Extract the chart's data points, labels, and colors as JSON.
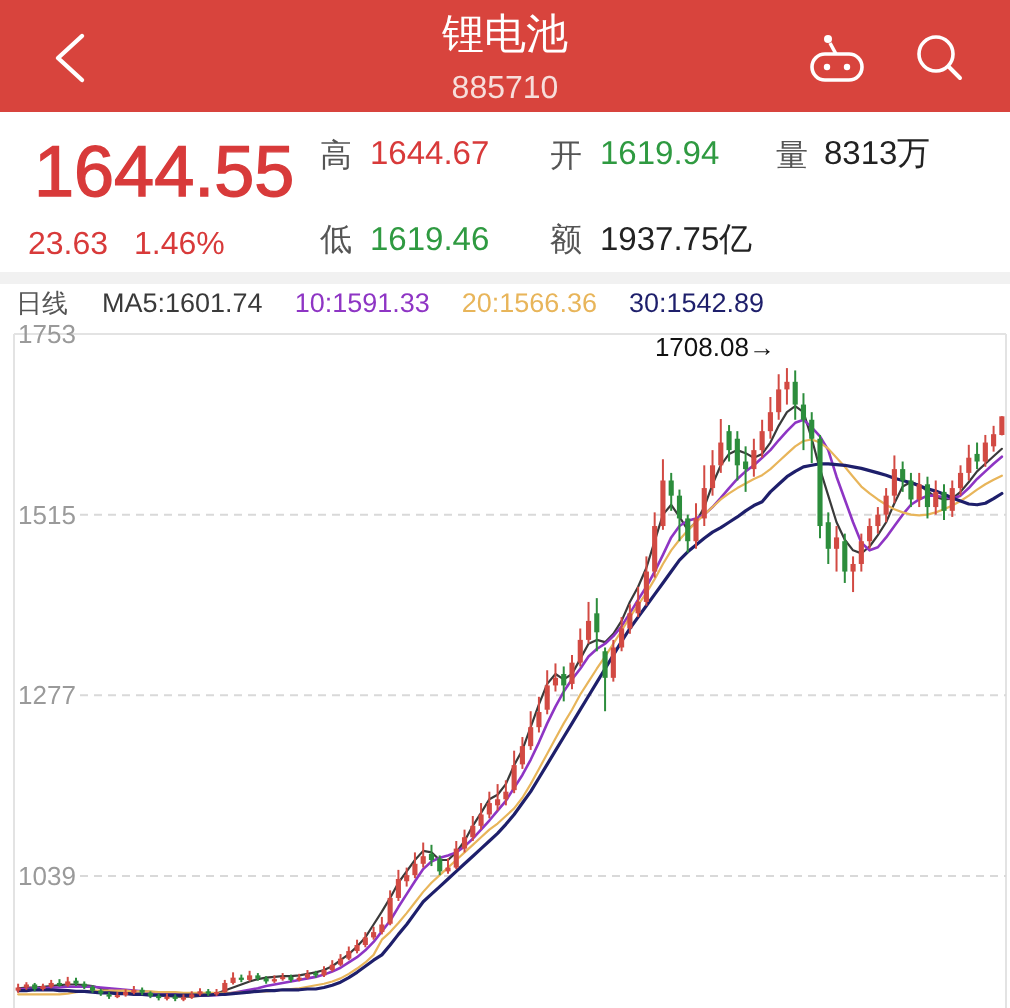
{
  "chart_data": {
    "type": "candlestick",
    "title": "锂电池",
    "subtitle": "885710",
    "annotations": [
      "1644.55",
      "23.63",
      "1.46%",
      "高",
      "1644.67",
      "开",
      "1619.94",
      "量",
      "8313万",
      "低",
      "1619.46",
      "额",
      "1937.75亿",
      "1708.08→"
    ],
    "legend_title": "日线",
    "legend": "top",
    "grid": "y",
    "ylim": [
      865,
      1753
    ],
    "yticks": [
      1753,
      1515,
      1277,
      1039
    ],
    "categories": [
      null,
      null,
      null,
      null,
      null,
      null,
      null,
      null,
      null,
      null,
      null,
      null,
      null,
      null,
      null,
      null,
      null,
      null,
      null,
      null,
      null,
      null,
      null,
      null,
      null,
      null,
      null,
      null,
      null,
      null,
      null,
      null,
      null,
      null,
      null,
      null,
      null,
      null,
      null,
      null,
      null,
      null,
      null,
      null,
      null,
      null,
      null,
      null,
      null,
      null,
      null,
      null,
      null,
      null,
      null,
      null,
      null,
      null,
      null,
      null,
      null,
      null,
      null,
      null,
      null,
      null,
      null,
      null,
      null,
      null,
      null,
      null,
      null,
      null,
      null,
      null,
      null,
      null,
      null,
      null,
      null,
      null,
      null,
      null,
      null,
      null,
      null,
      null,
      null,
      null,
      null,
      null,
      null,
      null,
      null,
      null,
      null,
      null,
      null,
      null,
      null,
      null,
      null,
      null,
      null,
      null,
      null,
      null,
      null,
      null,
      null,
      null,
      null,
      null,
      null,
      null,
      null,
      null,
      null,
      null
    ],
    "ohlc": [
      [
        888,
        897,
        885,
        892
      ],
      [
        892,
        899,
        889,
        896
      ],
      [
        896,
        898,
        887,
        890
      ],
      [
        890,
        897,
        888,
        894
      ],
      [
        893,
        902,
        891,
        898
      ],
      [
        898,
        903,
        893,
        895
      ],
      [
        895,
        906,
        893,
        900
      ],
      [
        901,
        905,
        894,
        897
      ],
      [
        897,
        900,
        890,
        893
      ],
      [
        893,
        895,
        885,
        888
      ],
      [
        888,
        890,
        881,
        884
      ],
      [
        883,
        886,
        877,
        880
      ],
      [
        880,
        886,
        878,
        882
      ],
      [
        882,
        890,
        880,
        886
      ],
      [
        885,
        894,
        883,
        889
      ],
      [
        889,
        892,
        882,
        885
      ],
      [
        885,
        887,
        878,
        881
      ],
      [
        881,
        884,
        875,
        878
      ],
      [
        877,
        884,
        875,
        880
      ],
      [
        880,
        883,
        874,
        877
      ],
      [
        876,
        883,
        874,
        879
      ],
      [
        879,
        887,
        877,
        883
      ],
      [
        883,
        891,
        881,
        887
      ],
      [
        887,
        890,
        881,
        884
      ],
      [
        883,
        890,
        881,
        886
      ],
      [
        886,
        902,
        885,
        898
      ],
      [
        898,
        912,
        896,
        905
      ],
      [
        905,
        909,
        899,
        902
      ],
      [
        902,
        914,
        900,
        908
      ],
      [
        908,
        911,
        901,
        904
      ],
      [
        904,
        907,
        897,
        900
      ],
      [
        900,
        908,
        898,
        903
      ],
      [
        903,
        911,
        901,
        906
      ],
      [
        906,
        909,
        899,
        902
      ],
      [
        902,
        910,
        900,
        905
      ],
      [
        905,
        915,
        903,
        910
      ],
      [
        911,
        914,
        905,
        908
      ],
      [
        908,
        920,
        906,
        915
      ],
      [
        915,
        928,
        913,
        922
      ],
      [
        922,
        936,
        920,
        930
      ],
      [
        930,
        946,
        928,
        940
      ],
      [
        940,
        955,
        937,
        948
      ],
      [
        948,
        965,
        945,
        958
      ],
      [
        958,
        972,
        955,
        965
      ],
      [
        965,
        985,
        962,
        975
      ],
      [
        976,
        1020,
        974,
        1010
      ],
      [
        1010,
        1047,
        1006,
        1035
      ],
      [
        1032,
        1050,
        1025,
        1040
      ],
      [
        1040,
        1070,
        1036,
        1055
      ],
      [
        1055,
        1083,
        1050,
        1065
      ],
      [
        1068,
        1080,
        1052,
        1060
      ],
      [
        1062,
        1066,
        1040,
        1045
      ],
      [
        1045,
        1062,
        1042,
        1050
      ],
      [
        1050,
        1085,
        1048,
        1075
      ],
      [
        1075,
        1100,
        1070,
        1090
      ],
      [
        1090,
        1118,
        1085,
        1105
      ],
      [
        1105,
        1135,
        1100,
        1120
      ],
      [
        1120,
        1150,
        1115,
        1135
      ],
      [
        1132,
        1160,
        1125,
        1140
      ],
      [
        1140,
        1165,
        1132,
        1150
      ],
      [
        1152,
        1204,
        1148,
        1185
      ],
      [
        1186,
        1222,
        1180,
        1210
      ],
      [
        1210,
        1256,
        1205,
        1235
      ],
      [
        1235,
        1275,
        1228,
        1255
      ],
      [
        1258,
        1310,
        1252,
        1290
      ],
      [
        1290,
        1319,
        1282,
        1300
      ],
      [
        1305,
        1315,
        1269,
        1290
      ],
      [
        1292,
        1330,
        1285,
        1320
      ],
      [
        1320,
        1365,
        1315,
        1350
      ],
      [
        1350,
        1400,
        1345,
        1375
      ],
      [
        1385,
        1405,
        1335,
        1360
      ],
      [
        1335,
        1340,
        1256,
        1300
      ],
      [
        1300,
        1350,
        1295,
        1340
      ],
      [
        1340,
        1380,
        1335,
        1365
      ],
      [
        1365,
        1397,
        1358,
        1385
      ],
      [
        1385,
        1420,
        1380,
        1400
      ],
      [
        1400,
        1460,
        1395,
        1440
      ],
      [
        1440,
        1518,
        1432,
        1500
      ],
      [
        1500,
        1588,
        1495,
        1560
      ],
      [
        1560,
        1570,
        1520,
        1540
      ],
      [
        1540,
        1548,
        1480,
        1510
      ],
      [
        1510,
        1515,
        1465,
        1480
      ],
      [
        1480,
        1530,
        1470,
        1510
      ],
      [
        1510,
        1580,
        1500,
        1550
      ],
      [
        1550,
        1600,
        1540,
        1580
      ],
      [
        1580,
        1641,
        1570,
        1610
      ],
      [
        1625,
        1633,
        1585,
        1600
      ],
      [
        1615,
        1625,
        1560,
        1580
      ],
      [
        1585,
        1605,
        1545,
        1575
      ],
      [
        1575,
        1615,
        1565,
        1600
      ],
      [
        1600,
        1640,
        1590,
        1625
      ],
      [
        1625,
        1670,
        1615,
        1650
      ],
      [
        1650,
        1700,
        1640,
        1680
      ],
      [
        1680,
        1708.08,
        1660,
        1690
      ],
      [
        1690,
        1705,
        1640,
        1660
      ],
      [
        1660,
        1675,
        1600,
        1640
      ],
      [
        1640,
        1650,
        1583,
        1615
      ],
      [
        1615,
        1620,
        1484,
        1500
      ],
      [
        1505,
        1518,
        1450,
        1470
      ],
      [
        1470,
        1500,
        1440,
        1485
      ],
      [
        1480,
        1490,
        1425,
        1440
      ],
      [
        1440,
        1460,
        1413,
        1450
      ],
      [
        1450,
        1490,
        1440,
        1480
      ],
      [
        1480,
        1510,
        1470,
        1500
      ],
      [
        1500,
        1525,
        1490,
        1515
      ],
      [
        1515,
        1550,
        1505,
        1540
      ],
      [
        1540,
        1593,
        1530,
        1575
      ],
      [
        1575,
        1585,
        1545,
        1560
      ],
      [
        1560,
        1570,
        1525,
        1535
      ],
      [
        1535,
        1570,
        1525,
        1555
      ],
      [
        1555,
        1565,
        1510,
        1525
      ],
      [
        1525,
        1560,
        1515,
        1545
      ],
      [
        1545,
        1555,
        1508,
        1520
      ],
      [
        1520,
        1560,
        1512,
        1550
      ],
      [
        1550,
        1580,
        1540,
        1570
      ],
      [
        1570,
        1607,
        1560,
        1590
      ],
      [
        1595,
        1610,
        1575,
        1585
      ],
      [
        1585,
        1620,
        1578,
        1610
      ],
      [
        1605,
        1632,
        1598,
        1621
      ],
      [
        1619.94,
        1644.67,
        1619.46,
        1644.55
      ]
    ],
    "colors": [
      "#d24a43",
      "#d24a43",
      "#2c8d3c",
      "#d24a43",
      "#d24a43",
      "#2c8d3c",
      "#d24a43",
      "#2c8d3c",
      "#2c8d3c",
      "#2c8d3c",
      "#2c8d3c",
      "#2c8d3c",
      "#d24a43",
      "#d24a43",
      "#d24a43",
      "#2c8d3c",
      "#2c8d3c",
      "#2c8d3c",
      "#d24a43",
      "#2c8d3c",
      "#d24a43",
      "#d24a43",
      "#d24a43",
      "#2c8d3c",
      "#d24a43",
      "#d24a43",
      "#d24a43",
      "#2c8d3c",
      "#d24a43",
      "#2c8d3c",
      "#2c8d3c",
      "#d24a43",
      "#d24a43",
      "#2c8d3c",
      "#d24a43",
      "#d24a43",
      "#2c8d3c",
      "#d24a43",
      "#d24a43",
      "#d24a43",
      "#d24a43",
      "#d24a43",
      "#d24a43",
      "#d24a43",
      "#d24a43",
      "#d24a43",
      "#d24a43",
      "#d24a43",
      "#d24a43",
      "#d24a43",
      "#2c8d3c",
      "#2c8d3c",
      "#d24a43",
      "#d24a43",
      "#d24a43",
      "#d24a43",
      "#d24a43",
      "#d24a43",
      "#d24a43",
      "#d24a43",
      "#d24a43",
      "#d24a43",
      "#d24a43",
      "#d24a43",
      "#d24a43",
      "#d24a43",
      "#2c8d3c",
      "#d24a43",
      "#d24a43",
      "#d24a43",
      "#2c8d3c",
      "#2c8d3c",
      "#d24a43",
      "#d24a43",
      "#d24a43",
      "#d24a43",
      "#d24a43",
      "#d24a43",
      "#d24a43",
      "#2c8d3c",
      "#2c8d3c",
      "#2c8d3c",
      "#d24a43",
      "#d24a43",
      "#d24a43",
      "#d24a43",
      "#2c8d3c",
      "#2c8d3c",
      "#2c8d3c",
      "#d24a43",
      "#d24a43",
      "#d24a43",
      "#d24a43",
      "#d24a43",
      "#2c8d3c",
      "#2c8d3c",
      "#2c8d3c",
      "#2c8d3c",
      "#2c8d3c",
      "#d24a43",
      "#2c8d3c",
      "#d24a43",
      "#d24a43",
      "#d24a43",
      "#d24a43",
      "#d24a43",
      "#d24a43",
      "#2c8d3c",
      "#2c8d3c",
      "#d24a43",
      "#2c8d3c",
      "#d24a43",
      "#2c8d3c",
      "#d24a43",
      "#d24a43",
      "#d24a43",
      "#2c8d3c",
      "#d24a43",
      "#d24a43",
      "#d24a43"
    ],
    "series": [
      {
        "name": "MA5:1601.74",
        "type": "line",
        "color": "#3a3a3a",
        "values": [
          891,
          892,
          892,
          893,
          894,
          895,
          896,
          896,
          895,
          894,
          891,
          888,
          886,
          885,
          884,
          884,
          883,
          882,
          881,
          880,
          880,
          880,
          881,
          882,
          884,
          888,
          892,
          896,
          900,
          903,
          905,
          906,
          907,
          907,
          908,
          910,
          912,
          915,
          920,
          928,
          936,
          946,
          958,
          975,
          992,
          1010,
          1030,
          1045,
          1060,
          1072,
          1070,
          1060,
          1060,
          1070,
          1085,
          1105,
          1122,
          1140,
          1146,
          1160,
          1185,
          1205,
          1235,
          1265,
          1292,
          1305,
          1298,
          1305,
          1325,
          1345,
          1350,
          1347,
          1358,
          1375,
          1400,
          1420,
          1445,
          1480,
          1515,
          1528,
          1512,
          1495,
          1505,
          1525,
          1555,
          1580,
          1595,
          1600,
          1596,
          1590,
          1595,
          1610,
          1632,
          1650,
          1658,
          1650,
          1615,
          1575,
          1540,
          1505,
          1482,
          1468,
          1464,
          1473,
          1488,
          1505,
          1530,
          1552,
          1558,
          1554,
          1546,
          1538,
          1535,
          1536,
          1545,
          1558,
          1572,
          1582,
          1592,
          1601.74
        ]
      },
      {
        "name": "10:1591.33",
        "type": "line",
        "color": "#8e35c4",
        "values": [
          890,
          890,
          891,
          891,
          892,
          892,
          893,
          893,
          893,
          893,
          892,
          891,
          890,
          889,
          888,
          887,
          886,
          885,
          884,
          883,
          882,
          882,
          882,
          882,
          882,
          883,
          885,
          887,
          889,
          891,
          894,
          896,
          898,
          900,
          902,
          904,
          906,
          909,
          913,
          918,
          925,
          932,
          941,
          952,
          966,
          980,
          998,
          1015,
          1032,
          1048,
          1058,
          1063,
          1066,
          1070,
          1078,
          1088,
          1100,
          1112,
          1125,
          1138,
          1155,
          1172,
          1192,
          1215,
          1240,
          1262,
          1282,
          1298,
          1312,
          1328,
          1338,
          1345,
          1355,
          1368,
          1385,
          1403,
          1420,
          1440,
          1462,
          1485,
          1500,
          1507,
          1510,
          1515,
          1525,
          1537,
          1550,
          1562,
          1572,
          1580,
          1590,
          1600,
          1613,
          1625,
          1636,
          1640,
          1630,
          1618,
          1600,
          1565,
          1535,
          1505,
          1478,
          1468,
          1472,
          1485,
          1500,
          1515,
          1528,
          1535,
          1540,
          1540,
          1538,
          1536,
          1540,
          1550,
          1562,
          1572,
          1582,
          1591.33
        ]
      },
      {
        "name": "20:1566.36",
        "type": "line",
        "color": "#e8b55a",
        "values": [
          883,
          883,
          883,
          883,
          883,
          883,
          884,
          886,
          887,
          888,
          888,
          888,
          888,
          888,
          887,
          887,
          887,
          886,
          886,
          886,
          885,
          885,
          885,
          885,
          885,
          885,
          885,
          886,
          886,
          887,
          887,
          888,
          889,
          890,
          891,
          893,
          895,
          897,
          900,
          904,
          910,
          917,
          925,
          935,
          955,
          965,
          977,
          990,
          1004,
          1018,
          1030,
          1040,
          1050,
          1060,
          1070,
          1080,
          1090,
          1100,
          1108,
          1118,
          1128,
          1142,
          1160,
          1180,
          1200,
          1220,
          1240,
          1258,
          1278,
          1295,
          1312,
          1328,
          1345,
          1362,
          1380,
          1396,
          1412,
          1430,
          1450,
          1468,
          1482,
          1494,
          1505,
          1515,
          1525,
          1535,
          1543,
          1550,
          1556,
          1562,
          1567,
          1575,
          1585,
          1595,
          1605,
          1612,
          1614,
          1610,
          1602,
          1590,
          1578,
          1565,
          1552,
          1543,
          1535,
          1528,
          1522,
          1518,
          1515,
          1514,
          1515,
          1518,
          1522,
          1527,
          1533,
          1540,
          1548,
          1555,
          1561,
          1566.36
        ]
      },
      {
        "name": "30:1542.89",
        "type": "line",
        "color": "#1e1f6b",
        "values": [
          888,
          888,
          889,
          889,
          889,
          888,
          888,
          887,
          887,
          886,
          885,
          885,
          884,
          884,
          883,
          883,
          882,
          882,
          882,
          882,
          882,
          882,
          882,
          882,
          883,
          883,
          884,
          885,
          886,
          887,
          888,
          888,
          889,
          889,
          889,
          890,
          890,
          892,
          895,
          899,
          905,
          912,
          920,
          928,
          935,
          948,
          962,
          975,
          990,
          1005,
          1015,
          1025,
          1035,
          1045,
          1055,
          1065,
          1075,
          1085,
          1095,
          1107,
          1120,
          1135,
          1150,
          1168,
          1186,
          1204,
          1222,
          1240,
          1258,
          1276,
          1294,
          1312,
          1330,
          1348,
          1365,
          1380,
          1395,
          1410,
          1425,
          1440,
          1455,
          1466,
          1475,
          1484,
          1492,
          1498,
          1505,
          1512,
          1520,
          1527,
          1532,
          1545,
          1555,
          1565,
          1572,
          1578,
          1580,
          1582,
          1582,
          1581,
          1580,
          1578,
          1576,
          1573,
          1570,
          1567,
          1563,
          1560,
          1557,
          1553,
          1549,
          1546,
          1542,
          1537,
          1533,
          1529,
          1528,
          1530,
          1536,
          1542.89
        ]
      }
    ]
  }
}
